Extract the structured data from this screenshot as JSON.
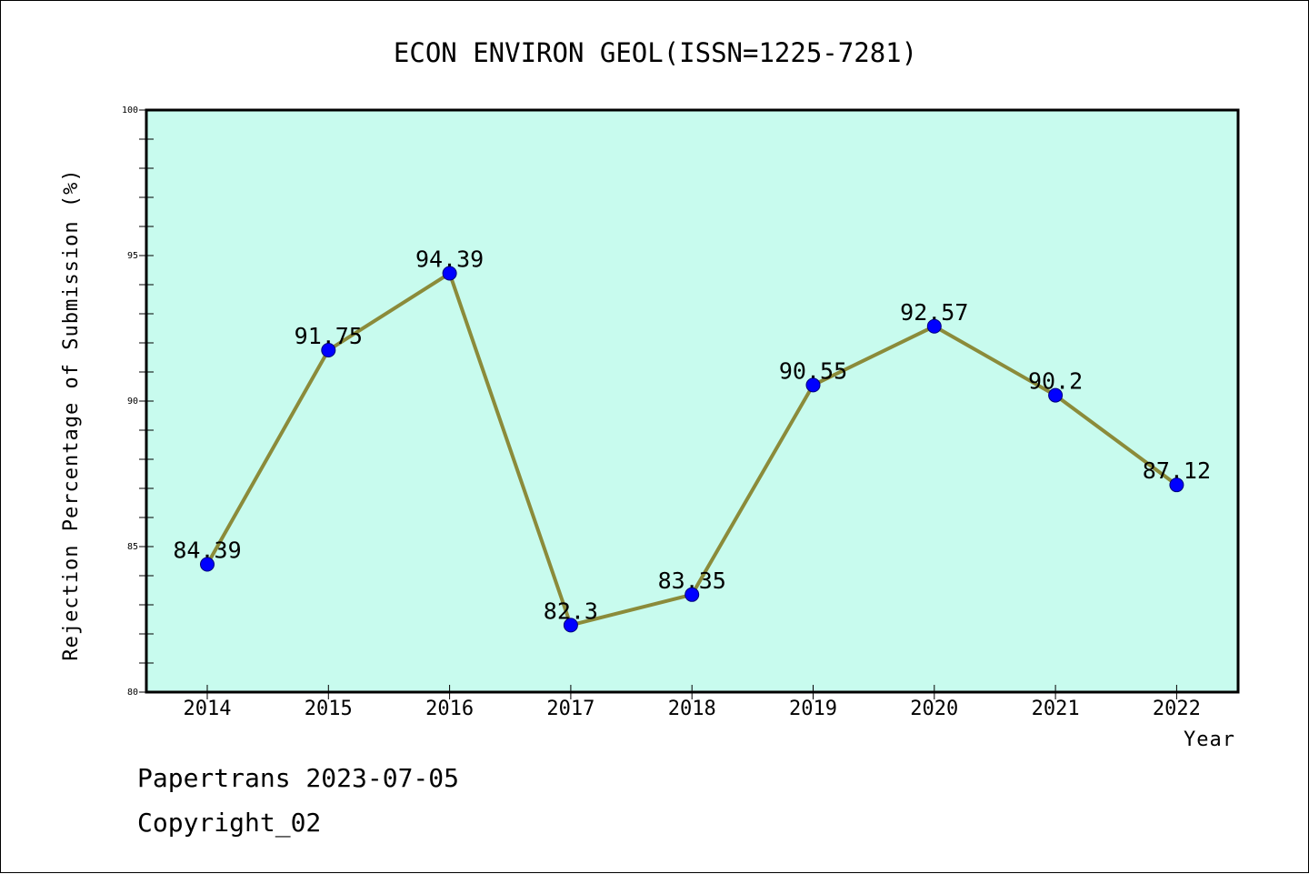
{
  "chart_data": {
    "type": "line",
    "title": "ECON ENVIRON GEOL(ISSN=1225-7281)",
    "xlabel": "Year",
    "ylabel": "Rejection Percentage of Submission (%)",
    "categories": [
      "2014",
      "2015",
      "2016",
      "2017",
      "2018",
      "2019",
      "2020",
      "2021",
      "2022"
    ],
    "values": [
      84.39,
      91.75,
      94.39,
      82.3,
      83.35,
      90.55,
      92.57,
      90.2,
      87.12
    ],
    "data_labels": [
      "84.39",
      "91.75",
      "94.39",
      "82.3",
      "83.35",
      "90.55",
      "92.57",
      "90.2",
      "87.12"
    ],
    "ylim": [
      80,
      100
    ],
    "y_ticks": [
      "80",
      "85",
      "90",
      "95",
      "100"
    ],
    "line_color": "#8b8b3a",
    "marker_color": "#0000ff",
    "plot_background": "#c8fbee",
    "grid": false
  },
  "footer": {
    "line1": "Papertrans 2023-07-05",
    "line2": "Copyright_02"
  }
}
